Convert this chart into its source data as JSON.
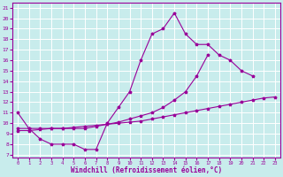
{
  "background_color": "#c8ecec",
  "grid_color": "#aadddd",
  "line_color": "#990099",
  "x_label": "Windchill (Refroidissement éolien,°C)",
  "x_ticks": [
    0,
    1,
    2,
    3,
    4,
    5,
    6,
    7,
    8,
    9,
    10,
    11,
    12,
    13,
    14,
    15,
    16,
    17,
    18,
    19,
    20,
    21,
    22,
    23
  ],
  "y_ticks": [
    7,
    8,
    9,
    10,
    11,
    12,
    13,
    14,
    15,
    16,
    17,
    18,
    19,
    20,
    21
  ],
  "xlim": [
    -0.5,
    23.5
  ],
  "ylim": [
    6.7,
    21.5
  ],
  "main_x": [
    0,
    1,
    2,
    3,
    4,
    5,
    6,
    7,
    8,
    9,
    10,
    11,
    12,
    13,
    14,
    15,
    16,
    17,
    18,
    19,
    20,
    21
  ],
  "main_y": [
    11.0,
    9.5,
    8.5,
    8.0,
    8.0,
    8.0,
    7.5,
    7.5,
    10.0,
    11.5,
    13.0,
    16.0,
    18.5,
    19.0,
    20.5,
    18.5,
    17.5,
    17.5,
    16.5,
    16.0,
    15.0,
    14.5
  ],
  "line1_x": [
    0,
    1,
    2,
    3,
    4,
    5,
    6,
    7,
    8,
    9,
    10,
    11,
    12,
    13,
    14,
    15,
    16,
    17
  ],
  "line1_y": [
    9.5,
    9.5,
    9.5,
    9.5,
    9.5,
    9.5,
    9.5,
    9.7,
    9.9,
    10.1,
    10.4,
    10.7,
    11.0,
    11.5,
    12.2,
    13.0,
    14.5,
    16.5
  ],
  "line2_x": [
    0,
    1,
    2,
    3,
    4,
    5,
    6,
    7,
    8,
    9,
    10,
    11,
    12,
    13,
    14,
    15,
    16,
    17,
    18,
    19,
    20,
    21,
    22,
    23
  ],
  "line2_y": [
    9.3,
    9.3,
    9.4,
    9.5,
    9.5,
    9.6,
    9.7,
    9.8,
    9.9,
    10.0,
    10.1,
    10.2,
    10.4,
    10.6,
    10.8,
    11.0,
    11.2,
    11.4,
    11.6,
    11.8,
    12.0,
    12.2,
    12.4,
    12.5
  ]
}
